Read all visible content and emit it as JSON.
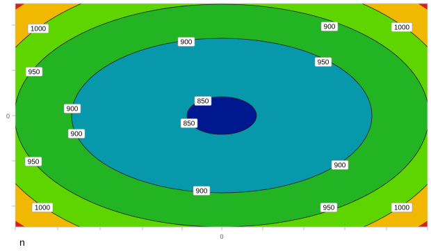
{
  "chart_data": {
    "type": "contour",
    "title": "",
    "xlabel": "",
    "ylabel": "",
    "x_ticks": [
      "0"
    ],
    "y_ticks": [
      "0"
    ],
    "legend": "none",
    "grid": false,
    "levels": [
      850,
      900,
      950,
      1000
    ],
    "level_colors": {
      "below_850": "#00188f",
      "850_900": "#0898ac",
      "900_950": "#22b422",
      "950_1000": "#5fd500",
      "above_1000": "#f0b800",
      "max": "#d42020"
    },
    "contour_labels": [
      {
        "level": 1000,
        "text": "1000"
      },
      {
        "level": 950,
        "text": "950"
      },
      {
        "level": 1000,
        "text": "1000"
      },
      {
        "level": 900,
        "text": "900"
      },
      {
        "level": 900,
        "text": "900"
      },
      {
        "level": 950,
        "text": "950"
      },
      {
        "level": 900,
        "text": "900"
      },
      {
        "level": 850,
        "text": "850"
      },
      {
        "level": 850,
        "text": "850"
      },
      {
        "level": 900,
        "text": "900"
      },
      {
        "level": 950,
        "text": "950"
      },
      {
        "level": 900,
        "text": "900"
      },
      {
        "level": 900,
        "text": "900"
      },
      {
        "level": 1000,
        "text": "1000"
      },
      {
        "level": 950,
        "text": "950"
      },
      {
        "level": 1000,
        "text": "1000"
      }
    ]
  },
  "corner_label": "n"
}
